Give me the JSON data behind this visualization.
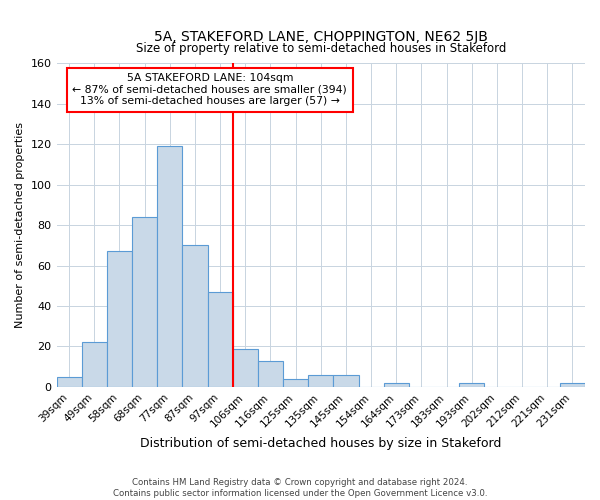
{
  "title": "5A, STAKEFORD LANE, CHOPPINGTON, NE62 5JB",
  "subtitle": "Size of property relative to semi-detached houses in Stakeford",
  "xlabel": "Distribution of semi-detached houses by size in Stakeford",
  "ylabel": "Number of semi-detached properties",
  "bar_labels": [
    "39sqm",
    "49sqm",
    "58sqm",
    "68sqm",
    "77sqm",
    "87sqm",
    "97sqm",
    "106sqm",
    "116sqm",
    "125sqm",
    "135sqm",
    "145sqm",
    "154sqm",
    "164sqm",
    "173sqm",
    "183sqm",
    "193sqm",
    "202sqm",
    "212sqm",
    "221sqm",
    "231sqm"
  ],
  "bar_heights": [
    5,
    22,
    67,
    84,
    119,
    70,
    47,
    19,
    13,
    4,
    6,
    6,
    0,
    2,
    0,
    0,
    2,
    0,
    0,
    0,
    2
  ],
  "bar_color": "#c9d9e8",
  "bar_edge_color": "#5b9bd5",
  "vline_x_index": 7,
  "annotation_title": "5A STAKEFORD LANE: 104sqm",
  "annotation_line1": "← 87% of semi-detached houses are smaller (394)",
  "annotation_line2": "13% of semi-detached houses are larger (57) →",
  "ylim": [
    0,
    160
  ],
  "yticks": [
    0,
    20,
    40,
    60,
    80,
    100,
    120,
    140,
    160
  ],
  "footer1": "Contains HM Land Registry data © Crown copyright and database right 2024.",
  "footer2": "Contains public sector information licensed under the Open Government Licence v3.0.",
  "background_color": "#ffffff",
  "grid_color": "#c8d4e0"
}
